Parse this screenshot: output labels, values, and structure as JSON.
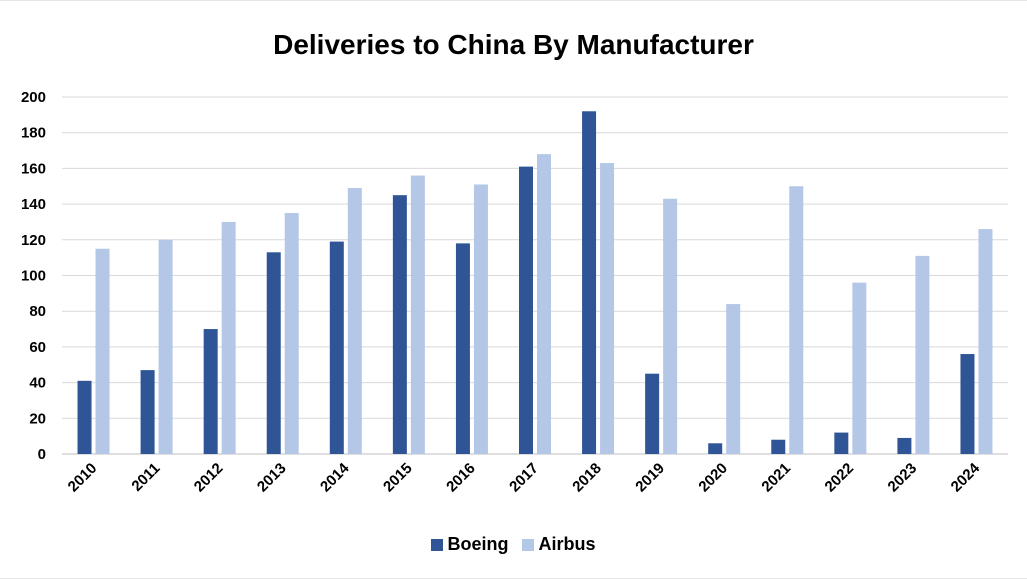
{
  "chart_data": {
    "type": "bar",
    "title": "Deliveries to China By Manufacturer",
    "categories": [
      "2010",
      "2011",
      "2012",
      "2013",
      "2014",
      "2015",
      "2016",
      "2017",
      "2018",
      "2019",
      "2020",
      "2021",
      "2022",
      "2023",
      "2024"
    ],
    "series": [
      {
        "name": "Boeing",
        "color": "#2f5597",
        "values": [
          41,
          47,
          70,
          113,
          119,
          145,
          118,
          161,
          192,
          45,
          6,
          8,
          12,
          9,
          56
        ]
      },
      {
        "name": "Airbus",
        "color": "#b4c7e7",
        "values": [
          115,
          120,
          130,
          135,
          149,
          156,
          151,
          168,
          163,
          143,
          84,
          150,
          96,
          111,
          126
        ]
      }
    ],
    "ylim": [
      0,
      200
    ],
    "yticks": [
      0,
      20,
      40,
      60,
      80,
      100,
      120,
      140,
      160,
      180,
      200
    ],
    "grid": true,
    "legend_position": "bottom"
  }
}
